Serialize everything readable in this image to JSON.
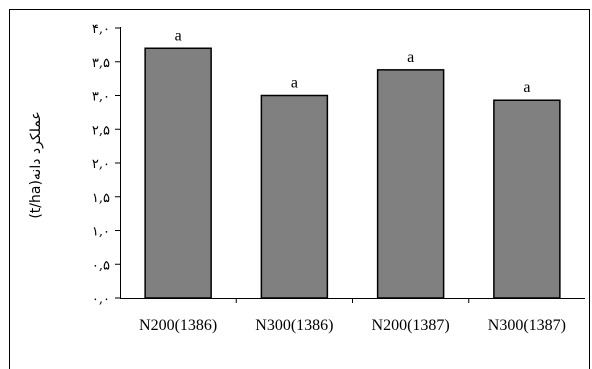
{
  "chart_data": {
    "type": "bar",
    "categories": [
      "N200(1386)",
      "N300(1386)",
      "N200(1387)",
      "N300(1387)"
    ],
    "values": [
      3.7,
      3.0,
      3.38,
      2.93
    ],
    "data_labels": [
      "a",
      "a",
      "a",
      "a"
    ],
    "ylabel": "عملکرد دانه(t/ha)",
    "ylim": [
      0,
      4
    ],
    "yticks": [
      0,
      0.5,
      1,
      1.5,
      2,
      2.5,
      3,
      3.5,
      4
    ],
    "ytick_labels": [
      "۰,۰",
      "۰,۵",
      "۱,۰",
      "۱,۵",
      "۲,۰",
      "۲,۵",
      "۳,۰",
      "۳,۵",
      "۴,۰"
    ],
    "grid": false,
    "legend": "none",
    "bar_color": "#808080",
    "bar_edge_color": "#000000",
    "frame_color": "#000000"
  }
}
